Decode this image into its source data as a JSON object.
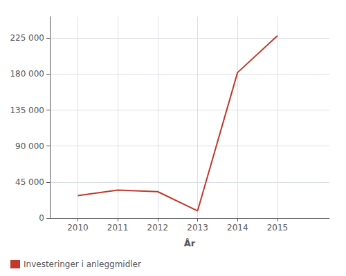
{
  "chart_data": {
    "type": "line",
    "x": [
      2010,
      2011,
      2012,
      2013,
      2014,
      2015
    ],
    "series": [
      {
        "name": "Investeringer i anleggmidler",
        "color": "#c0392b",
        "values": [
          28000,
          35000,
          33000,
          9000,
          182000,
          228000
        ]
      }
    ],
    "xlabel": "År",
    "xlim": [
      2009.3,
      2016.3
    ],
    "xticks": [
      2010,
      2011,
      2012,
      2013,
      2014,
      2015
    ],
    "ylim": [
      0,
      252000
    ],
    "yticks": [
      0,
      {
        "value": 45000,
        "label": "45 000"
      },
      {
        "value": 90000,
        "label": "90 000"
      },
      {
        "value": 135000,
        "label": "135 000"
      },
      {
        "value": 180000,
        "label": "180 000"
      },
      {
        "value": 225000,
        "label": "225 000"
      }
    ],
    "grid": true,
    "legend": "lower left"
  }
}
